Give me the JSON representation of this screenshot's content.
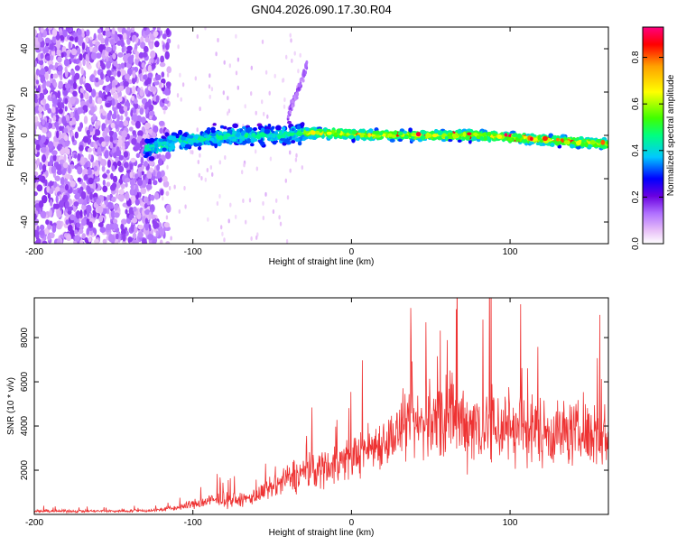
{
  "title": "GN04.2026.090.17.30.R04",
  "chart_data": [
    {
      "type": "heatmap",
      "xlabel": "Height of straight line (km)",
      "ylabel": "Frequency (Hz)",
      "xlim": [
        -200,
        162
      ],
      "ylim": [
        -50,
        50
      ],
      "xticks": [
        -200,
        -100,
        0,
        100
      ],
      "yticks": [
        -40,
        -20,
        0,
        20,
        40
      ],
      "colorbar": {
        "label": "Normalized spectral amplitude",
        "range": [
          0,
          0.93
        ],
        "ticks": [
          "0.0",
          "0.2",
          "0.4",
          "0.6",
          "0.8"
        ],
        "colors": [
          "#ffffff",
          "#e8c0f8",
          "#b070ff",
          "#6a00e0",
          "#0000ff",
          "#00c8ff",
          "#00ff80",
          "#40ff00",
          "#ffff00",
          "#ffa000",
          "#ff0000",
          "#ff0080"
        ]
      },
      "ridge": {
        "x": [
          -128,
          -110,
          -90,
          -70,
          -50,
          -30,
          -10,
          0,
          20,
          40,
          60,
          80,
          100,
          120,
          140,
          162
        ],
        "freq": [
          -6,
          -3,
          -1,
          0,
          0,
          1,
          1,
          0.5,
          0,
          0,
          0,
          0,
          -1,
          -2,
          -3,
          -4
        ]
      },
      "upsweep": {
        "x": [
          -40,
          -34,
          -30,
          -28
        ],
        "freq": [
          10,
          20,
          28,
          34
        ]
      }
    },
    {
      "type": "line",
      "xlabel": "Height of straight line (km)",
      "ylabel": "SNR (10 * v/v)",
      "xlim": [
        -200,
        162
      ],
      "ylim": [
        0,
        9800
      ],
      "xticks": [
        -200,
        -100,
        0,
        100
      ],
      "yticks": [
        2000,
        4000,
        6000,
        8000
      ],
      "series_color": "#ee3333",
      "envelope": {
        "x": [
          -200,
          -150,
          -125,
          -110,
          -90,
          -80,
          -70,
          -55,
          -40,
          -30,
          -20,
          -10,
          0,
          10,
          20,
          30,
          40,
          50,
          60,
          70,
          80,
          90,
          100,
          110,
          120,
          130,
          140,
          150,
          162
        ],
        "mean": [
          150,
          150,
          180,
          300,
          600,
          700,
          600,
          1000,
          1600,
          1900,
          2100,
          2300,
          2600,
          3000,
          3300,
          3700,
          4000,
          4200,
          4300,
          4200,
          4100,
          4000,
          4000,
          3900,
          3800,
          3700,
          3700,
          3600,
          3500
        ],
        "spread": [
          100,
          100,
          120,
          200,
          500,
          550,
          450,
          700,
          1100,
          1300,
          1400,
          1500,
          1500,
          1700,
          1800,
          2000,
          2400,
          2800,
          3200,
          3000,
          3000,
          3200,
          2800,
          2600,
          2400,
          2400,
          2200,
          2200,
          2200
        ]
      }
    }
  ]
}
